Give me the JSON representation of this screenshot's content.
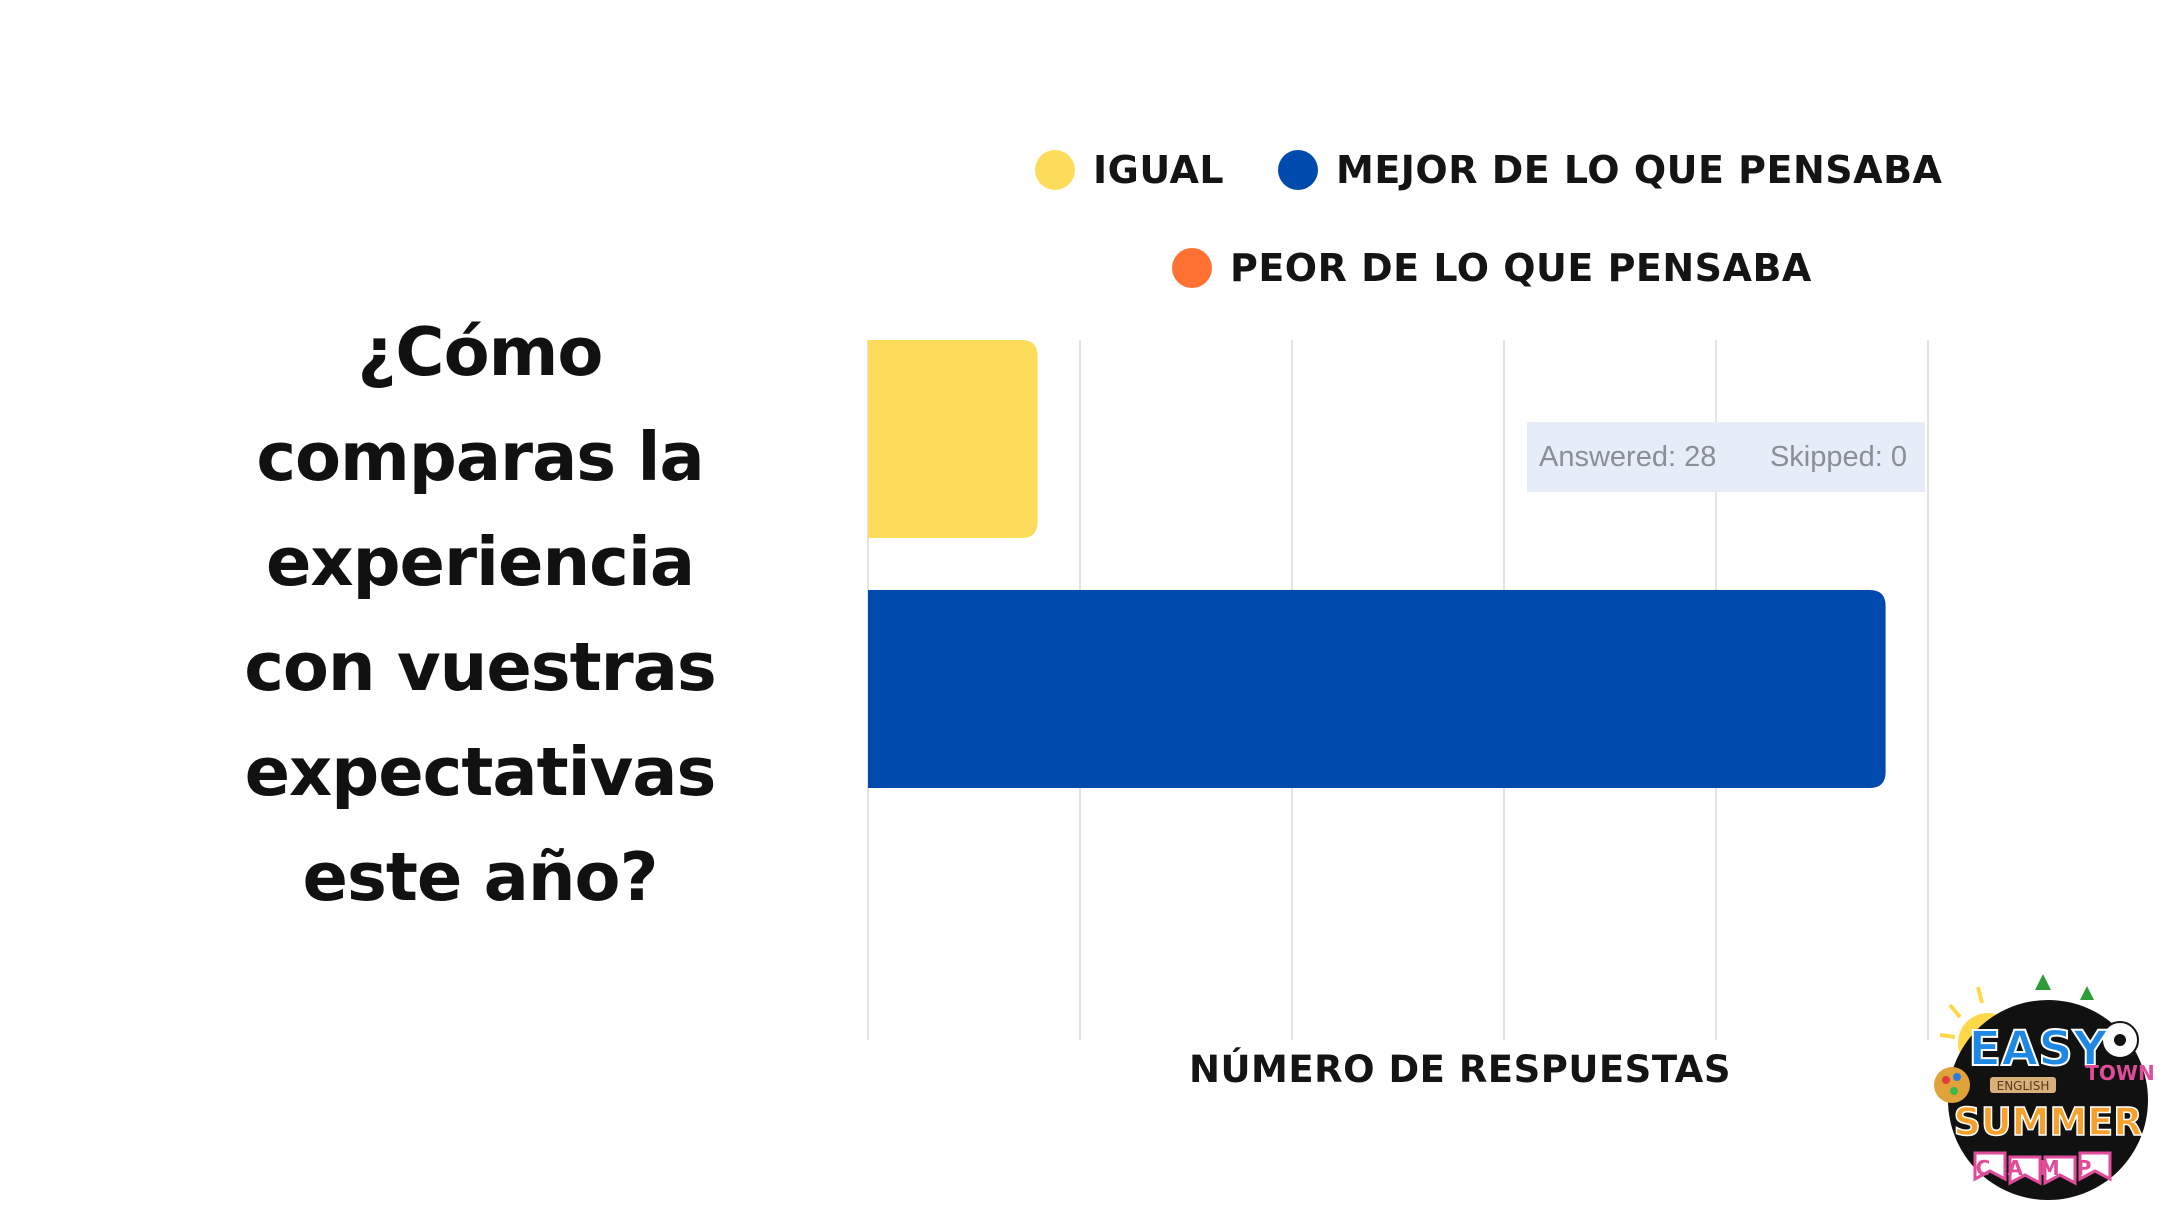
{
  "question": {
    "lines": [
      "¿Cómo",
      "comparas la",
      "experiencia",
      "con vuestras",
      "expectativas",
      "este año?"
    ]
  },
  "legend": [
    {
      "label": "IGUAL",
      "color": "#FDDC5C"
    },
    {
      "label": "MEJOR DE LO QUE PENSABA",
      "color": "#004AAD"
    },
    {
      "label": "PEOR DE LO QUE PENSABA",
      "color": "#FF7033"
    }
  ],
  "stats": {
    "answered": "Answered: 28",
    "skipped": "Skipped: 0"
  },
  "chart_data": {
    "type": "bar",
    "orientation": "horizontal",
    "categories": [
      "IGUAL",
      "MEJOR DE LO QUE PENSABA",
      "PEOR DE LO QUE PENSABA"
    ],
    "values": [
      4,
      24,
      0
    ],
    "colors": [
      "#FDDC5C",
      "#004AAD",
      "#FF7033"
    ],
    "xlabel": "NÚMERO DE RESPUESTAS",
    "xlim": [
      0,
      25
    ],
    "grid": true,
    "legend": "top"
  },
  "logo": {
    "text_easy": "EASY",
    "text_town": "TOWN",
    "text_english": "ENGLISH",
    "text_summer": "SUMMER",
    "text_camp": "CAMP"
  }
}
